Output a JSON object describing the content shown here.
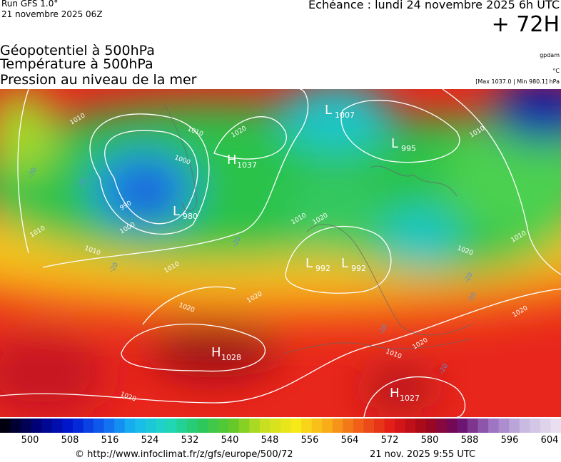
{
  "header": {
    "run": "Run GFS 1.0°",
    "date": "21 novembre 2025 06Z",
    "echeance": "Echéance : lundi 24 novembre 2025 6h UTC",
    "lead": "+ 72H"
  },
  "titles": [
    "Géopotentiel à 500hPa",
    "Température à 500hPa",
    "Pression au niveau de la mer"
  ],
  "units": {
    "geopotential": "gpdam",
    "temperature": "°C",
    "pressure": "[Max 1037.0 | Min 980.1] hPa"
  },
  "centers": [
    {
      "letter": "H",
      "value": "1037"
    },
    {
      "letter": "L",
      "value": "980"
    },
    {
      "letter": "L",
      "value": "1007"
    },
    {
      "letter": "L",
      "value": "995"
    },
    {
      "letter": "L",
      "value": "992"
    },
    {
      "letter": "L",
      "value": "992"
    },
    {
      "letter": "H",
      "value": "1028"
    },
    {
      "letter": "H",
      "value": "1027"
    }
  ],
  "isobar_labels": [
    "1010",
    "1010",
    "1020",
    "1000",
    "990",
    "1000",
    "1010",
    "1010",
    "1010",
    "1020",
    "1020",
    "1020",
    "1020",
    "1010",
    "1010",
    "1020",
    "1020",
    "1010",
    "1010",
    "1020"
  ],
  "temperature_labels": [
    "-30",
    "-30",
    "-20",
    "-20",
    "-20",
    "-20",
    "-20",
    "-20"
  ],
  "scale": {
    "labels": [
      500,
      508,
      516,
      524,
      532,
      540,
      548,
      556,
      564,
      572,
      580,
      588,
      596,
      604
    ]
  },
  "footer": {
    "url": "© http://www.infoclimat.fr/z/gfs/europe/500/72",
    "timestamp": "21 nov. 2025  9:55 UTC"
  }
}
